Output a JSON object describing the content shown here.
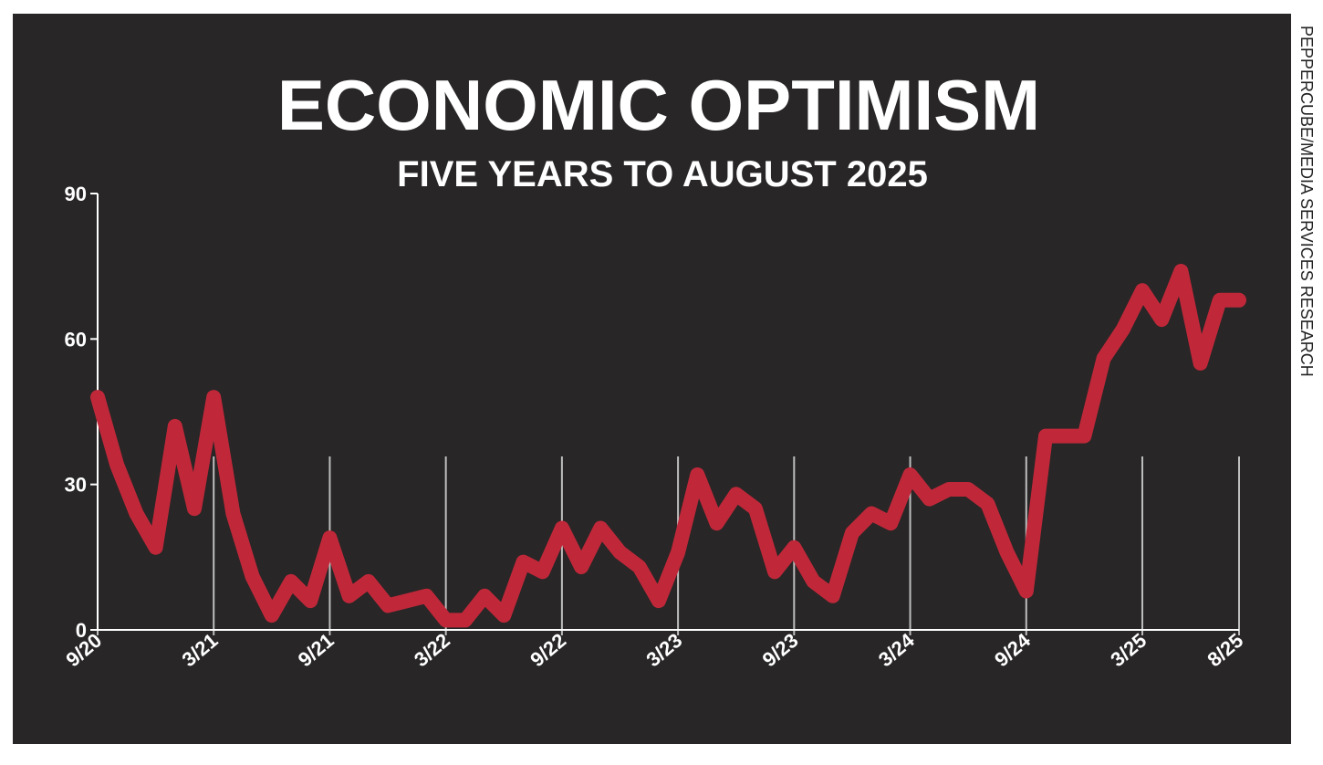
{
  "chart_data": {
    "type": "line",
    "title": "ECONOMIC OPTIMISM",
    "subtitle": "FIVE YEARS TO AUGUST 2025",
    "source": "PEPPERCUBE/MEDIA SERVICES RESEARCH",
    "categories": [
      "9/20",
      null,
      null,
      null,
      null,
      null,
      "3/21",
      null,
      null,
      null,
      null,
      null,
      "9/21",
      null,
      null,
      null,
      null,
      null,
      "3/22",
      null,
      null,
      null,
      null,
      null,
      "9/22",
      null,
      null,
      null,
      null,
      null,
      "3/23",
      null,
      null,
      null,
      null,
      null,
      "9/23",
      null,
      null,
      null,
      null,
      null,
      "3/24",
      null,
      null,
      null,
      null,
      null,
      "9/24",
      null,
      null,
      null,
      null,
      null,
      "3/25",
      null,
      null,
      null,
      null,
      "8/25"
    ],
    "values": [
      48,
      34,
      24,
      17,
      42,
      25,
      48,
      24,
      11,
      3,
      10,
      6,
      19,
      7,
      10,
      5,
      6,
      7,
      2,
      2,
      7,
      3,
      14,
      12,
      21,
      13,
      21,
      16,
      13,
      6,
      16,
      32,
      22,
      28,
      25,
      12,
      17,
      10,
      7,
      20,
      24,
      22,
      32,
      27,
      29,
      29,
      26,
      16,
      8,
      40,
      40,
      40,
      56,
      62,
      70,
      64,
      74,
      55,
      68,
      68
    ],
    "color": "#c0283a",
    "ylim": [
      0,
      90
    ],
    "yticks": [
      0,
      30,
      60,
      90
    ]
  }
}
